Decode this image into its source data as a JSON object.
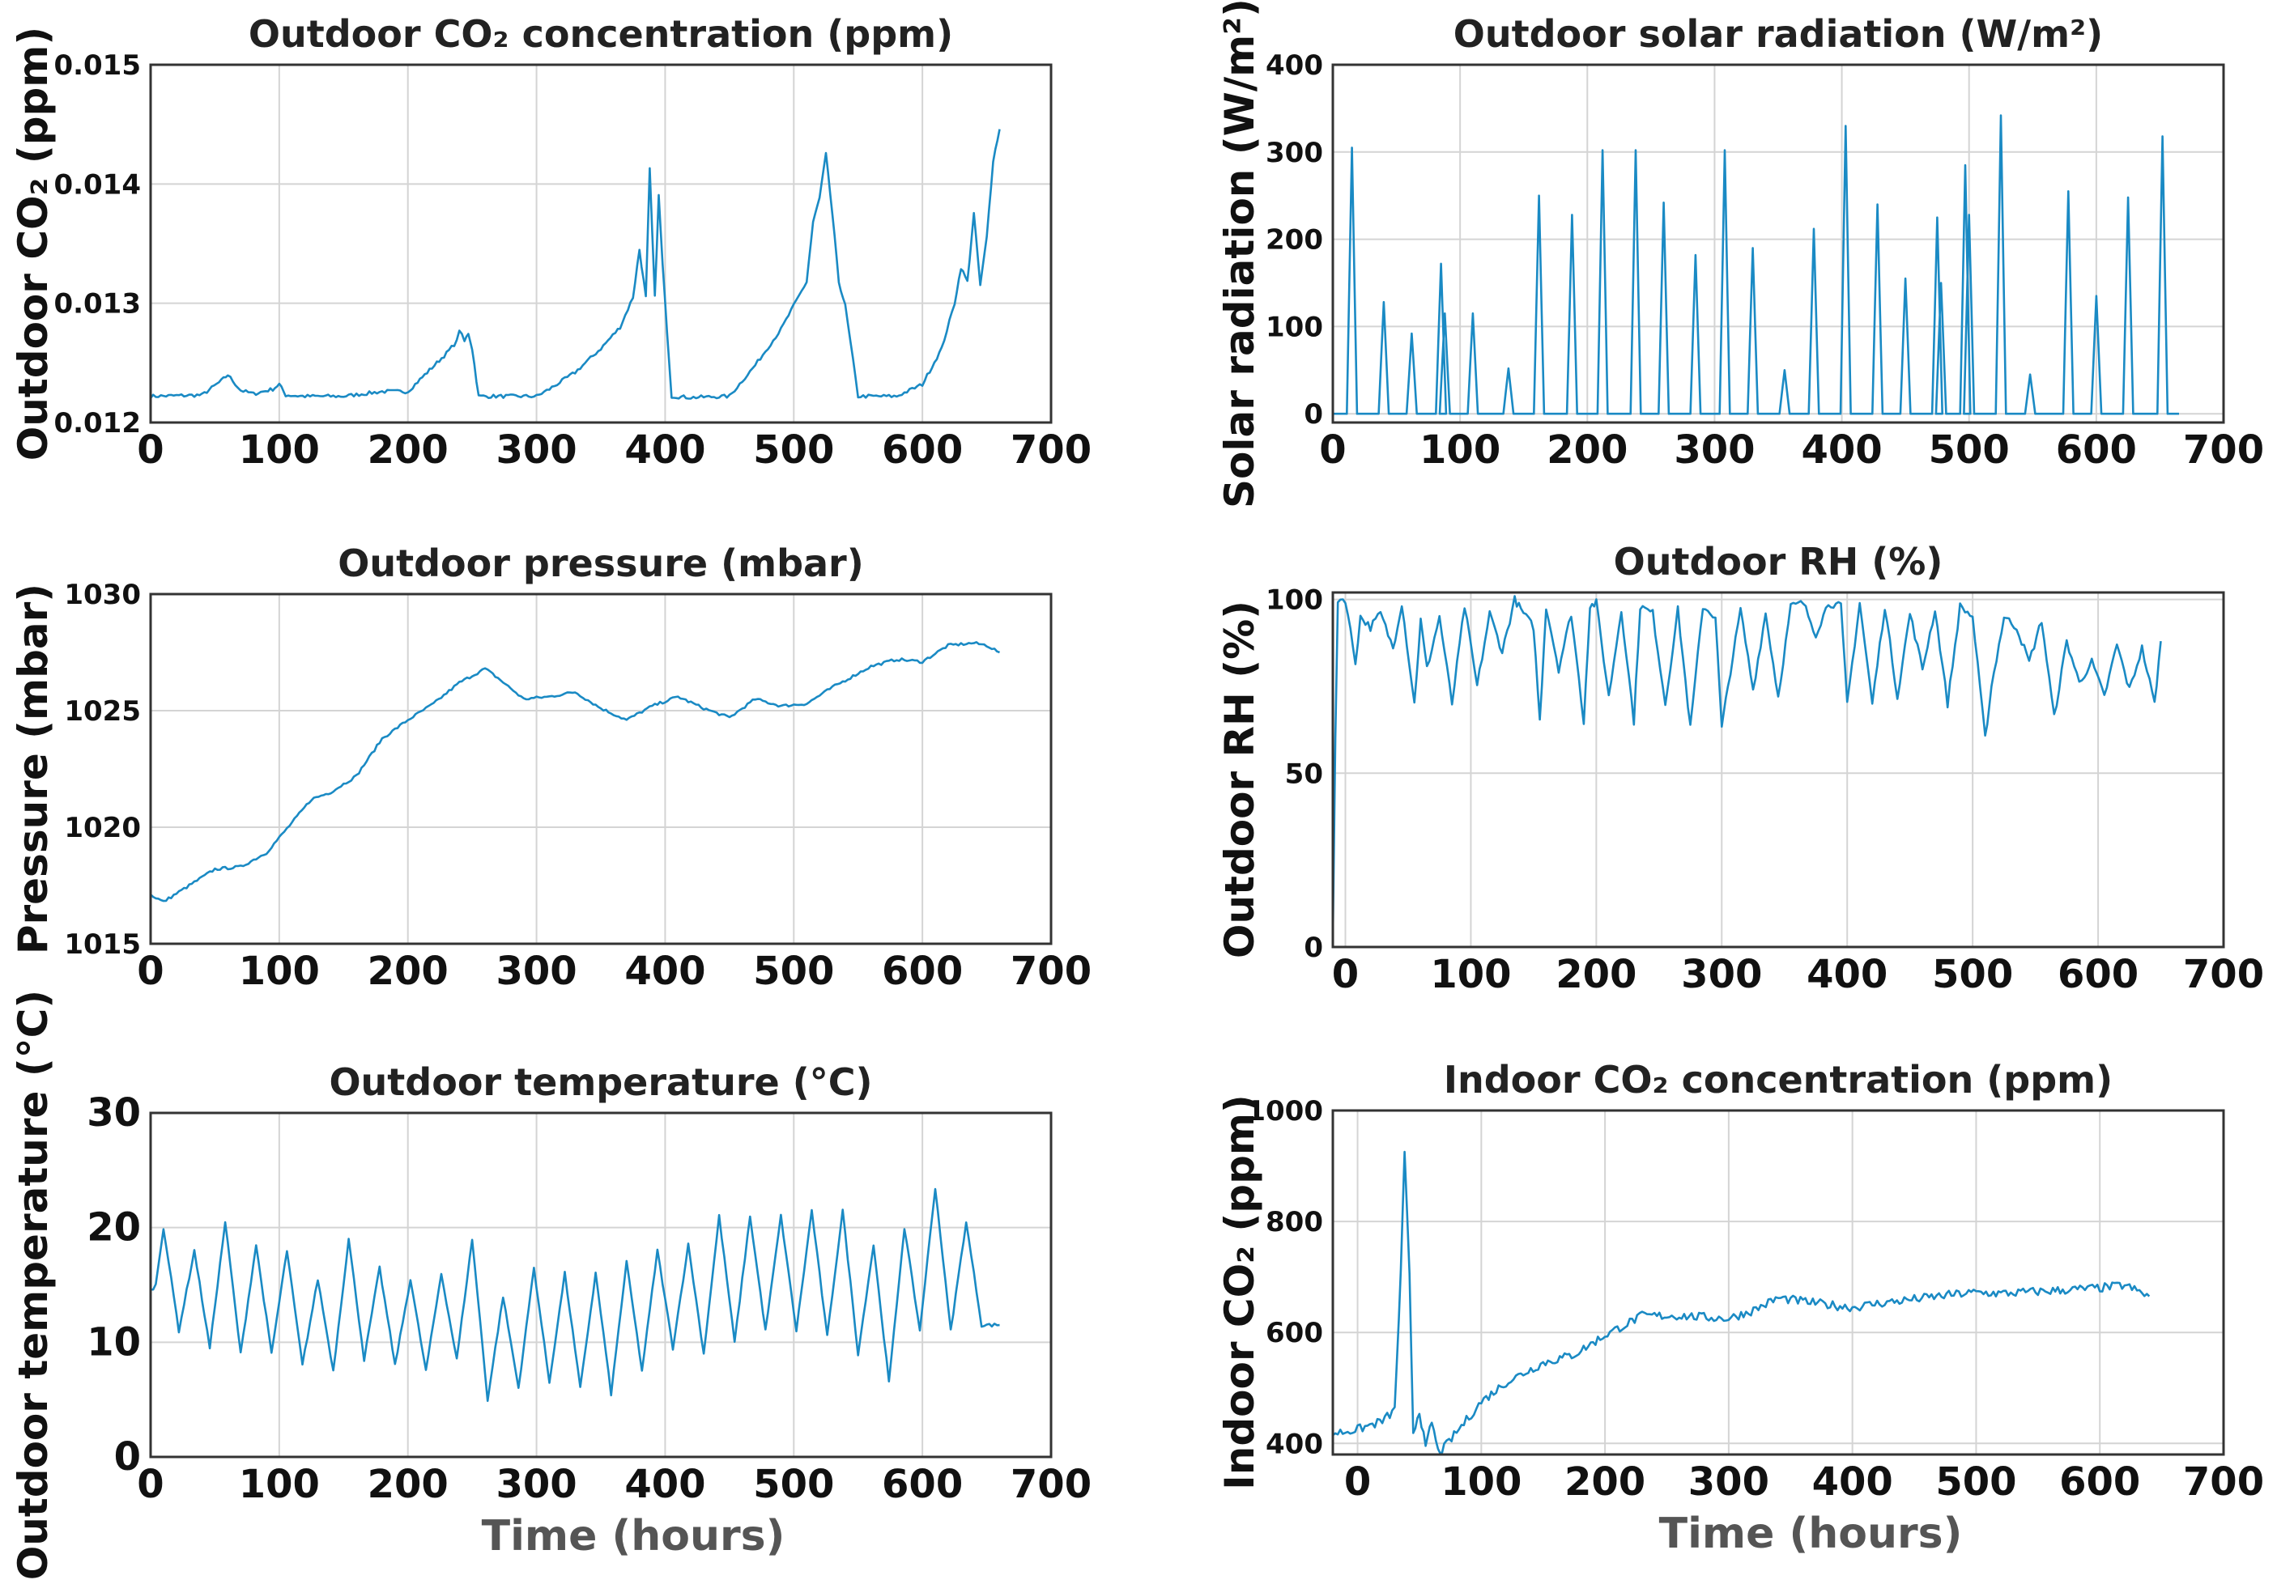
{
  "colors": {
    "series": "#1a8ac4",
    "frame": "#333333",
    "grid": "#d4d4d4"
  },
  "chart_data": [
    {
      "id": "outdoor-co2",
      "type": "line",
      "title": "Outdoor CO₂ concentration (ppm)",
      "ylabel": "Outdoor CO₂ (ppm)",
      "xlabel": "",
      "xlim": [
        0,
        700
      ],
      "ylim": [
        0.012,
        0.015
      ],
      "xticks": [
        "0",
        "100",
        "200",
        "300",
        "400",
        "500",
        "600",
        "700"
      ],
      "yticks": [
        "0.012",
        "0.013",
        "0.014",
        "0.015"
      ],
      "series": [
        {
          "name": "Outdoor CO₂",
          "x": [
            0,
            40,
            55,
            60,
            70,
            80,
            95,
            100,
            105,
            120,
            150,
            180,
            200,
            215,
            230,
            238,
            240,
            244,
            247,
            250,
            255,
            280,
            300,
            310,
            330,
            350,
            365,
            375,
            380,
            385,
            388,
            392,
            395,
            398,
            405,
            420,
            450,
            470,
            490,
            500,
            510,
            515,
            520,
            525,
            530,
            535,
            540,
            550,
            580,
            600,
            615,
            625,
            630,
            635,
            640,
            645,
            650,
            655,
            660
          ],
          "values": [
            0.01222,
            0.01223,
            0.01235,
            0.0124,
            0.01227,
            0.01224,
            0.01228,
            0.01232,
            0.01223,
            0.01222,
            0.01222,
            0.01226,
            0.01226,
            0.01242,
            0.01258,
            0.01268,
            0.01278,
            0.01268,
            0.01275,
            0.01262,
            0.01222,
            0.01222,
            0.01222,
            0.01228,
            0.01242,
            0.01262,
            0.0128,
            0.01305,
            0.01345,
            0.01305,
            0.01412,
            0.01305,
            0.0139,
            0.01332,
            0.01222,
            0.01221,
            0.01222,
            0.01248,
            0.01278,
            0.01298,
            0.01318,
            0.01368,
            0.01388,
            0.01425,
            0.01375,
            0.01318,
            0.01298,
            0.01222,
            0.01222,
            0.01232,
            0.01262,
            0.013,
            0.0133,
            0.01318,
            0.01375,
            0.01315,
            0.01355,
            0.0142,
            0.01446
          ]
        }
      ]
    },
    {
      "id": "solar-radiation",
      "type": "line",
      "title": "Outdoor solar radiation (W/m²)",
      "ylabel": "Solar radiation (W/m²)",
      "xlabel": "",
      "xlim": [
        0,
        700
      ],
      "ylim": [
        -10,
        400
      ],
      "xticks": [
        "0",
        "100",
        "200",
        "300",
        "400",
        "500",
        "600",
        "700"
      ],
      "yticks": [
        "0",
        "100",
        "200",
        "300",
        "400"
      ],
      "series": [
        {
          "name": "Solar radiation",
          "peak_times": [
            15,
            40,
            62,
            85,
            88,
            110,
            138,
            162,
            188,
            212,
            238,
            260,
            285,
            308,
            330,
            355,
            378,
            403,
            428,
            450,
            475,
            478,
            497,
            500,
            525,
            548,
            578,
            600,
            625,
            652
          ],
          "peak_values": [
            305,
            128,
            92,
            172,
            115,
            115,
            52,
            250,
            228,
            302,
            302,
            242,
            182,
            302,
            190,
            50,
            212,
            330,
            240,
            155,
            225,
            150,
            285,
            228,
            342,
            45,
            255,
            135,
            248,
            318
          ]
        }
      ]
    },
    {
      "id": "outdoor-pressure",
      "type": "line",
      "title": "Outdoor pressure (mbar)",
      "ylabel": "Pressure (mbar)",
      "xlabel": "",
      "xlim": [
        0,
        700
      ],
      "ylim": [
        1015,
        1030
      ],
      "xticks": [
        "0",
        "100",
        "200",
        "300",
        "400",
        "500",
        "600",
        "700"
      ],
      "yticks": [
        "1015",
        "1020",
        "1025",
        "1030"
      ],
      "series": [
        {
          "name": "Pressure",
          "x": [
            0,
            10,
            30,
            50,
            70,
            90,
            110,
            125,
            140,
            160,
            180,
            200,
            220,
            240,
            260,
            270,
            290,
            310,
            330,
            350,
            370,
            390,
            410,
            430,
            450,
            470,
            490,
            510,
            530,
            560,
            580,
            600,
            620,
            640,
            650,
            660
          ],
          "values": [
            1017.1,
            1016.8,
            1017.5,
            1018.2,
            1018.3,
            1018.9,
            1020.2,
            1021.2,
            1021.5,
            1022.2,
            1023.8,
            1024.6,
            1025.3,
            1026.2,
            1026.8,
            1026.4,
            1025.5,
            1025.6,
            1025.8,
            1025.1,
            1024.6,
            1025.2,
            1025.6,
            1025.1,
            1024.7,
            1025.5,
            1025.2,
            1025.3,
            1026.0,
            1026.9,
            1027.2,
            1027.1,
            1027.8,
            1027.9,
            1027.8,
            1027.5
          ]
        }
      ]
    },
    {
      "id": "outdoor-rh",
      "type": "line",
      "title": "Outdoor RH (%)",
      "ylabel": "Outdoor RH (%)",
      "xlabel": "",
      "xlim": [
        -10,
        700
      ],
      "ylim": [
        0,
        102
      ],
      "xticks": [
        "0",
        "100",
        "200",
        "300",
        "400",
        "500",
        "600",
        "700"
      ],
      "yticks": [
        "0",
        "50",
        "100"
      ],
      "series": [
        {
          "name": "RH",
          "x": [
            -10,
            -8,
            -6,
            0,
            8,
            12,
            20,
            28,
            38,
            45,
            55,
            60,
            65,
            75,
            85,
            95,
            105,
            115,
            125,
            135,
            140,
            150,
            155,
            160,
            170,
            180,
            190,
            195,
            200,
            210,
            220,
            230,
            235,
            245,
            255,
            265,
            275,
            285,
            295,
            300,
            305,
            315,
            325,
            335,
            345,
            355,
            365,
            375,
            385,
            395,
            400,
            410,
            420,
            430,
            440,
            450,
            460,
            470,
            480,
            490,
            500,
            510,
            515,
            525,
            535,
            545,
            555,
            565,
            575,
            585,
            595,
            605,
            615,
            625,
            635,
            645,
            650
          ],
          "values": [
            2,
            60,
            100,
            100,
            82,
            95,
            92,
            96,
            86,
            99,
            70,
            94,
            80,
            95,
            70,
            98,
            75,
            96,
            85,
            100,
            97,
            92,
            65,
            98,
            80,
            96,
            65,
            98,
            99,
            72,
            97,
            65,
            98,
            96,
            70,
            97,
            63,
            98,
            95,
            63,
            75,
            97,
            74,
            96,
            72,
            98,
            99,
            90,
            99,
            98,
            70,
            99,
            70,
            98,
            72,
            96,
            80,
            97,
            70,
            98,
            95,
            60,
            75,
            95,
            92,
            82,
            94,
            66,
            88,
            76,
            82,
            72,
            87,
            74,
            86,
            70,
            88
          ]
        }
      ]
    },
    {
      "id": "outdoor-temperature",
      "type": "line",
      "title": "Outdoor temperature (°C)",
      "ylabel": "Outdoor temperature (°C)",
      "xlabel": "Time (hours)",
      "xlim": [
        0,
        700
      ],
      "ylim": [
        0,
        30
      ],
      "xticks": [
        "0",
        "100",
        "200",
        "300",
        "400",
        "500",
        "600",
        "700"
      ],
      "yticks": [
        "0",
        "10",
        "20",
        "30"
      ],
      "series": [
        {
          "name": "Temperature",
          "x": [
            0,
            5
          ],
          "values": [
            14.5,
            15
          ],
          "daily_peaks": [
            20,
            18,
            20.5,
            18.5,
            18,
            15.5,
            19,
            16.5,
            15.5,
            16,
            19,
            14,
            16.5,
            16,
            16,
            17,
            18,
            18.5,
            21,
            21,
            21,
            21.5,
            21.5,
            18.5,
            20,
            23.5,
            20.5
          ],
          "daily_troughs": [
            11,
            9.5,
            9,
            9,
            8,
            7.5,
            8.5,
            8,
            7.5,
            8.5,
            5,
            6,
            6.5,
            6,
            5.5,
            7.5,
            9.5,
            9,
            10,
            11,
            11,
            10.5,
            9,
            6.5,
            11,
            11,
            11.5
          ]
        }
      ]
    },
    {
      "id": "indoor-co2",
      "type": "line",
      "title": "Indoor CO₂ concentration (ppm)",
      "ylabel": "Indoor CO₂ (ppm)",
      "xlabel": "Time (hours)",
      "xlim": [
        -20,
        700
      ],
      "ylim": [
        380,
        1000
      ],
      "xticks": [
        "0",
        "100",
        "200",
        "300",
        "400",
        "500",
        "600",
        "700"
      ],
      "yticks": [
        "400",
        "600",
        "800",
        "1000"
      ],
      "series": [
        {
          "name": "Indoor CO₂",
          "x": [
            -20,
            0,
            20,
            30,
            35,
            38,
            42,
            45,
            50,
            55,
            60,
            65,
            70,
            80,
            100,
            120,
            150,
            175,
            200,
            230,
            260,
            300,
            320,
            340,
            380,
            400,
            420,
            450,
            480,
            500,
            520,
            560,
            600,
            620,
            640
          ],
          "values": [
            418,
            425,
            440,
            460,
            710,
            920,
            700,
            420,
            460,
            390,
            440,
            385,
            392,
            420,
            475,
            510,
            545,
            560,
            595,
            630,
            630,
            625,
            640,
            662,
            650,
            645,
            652,
            660,
            668,
            672,
            670,
            675,
            680,
            685,
            665
          ]
        }
      ]
    }
  ]
}
